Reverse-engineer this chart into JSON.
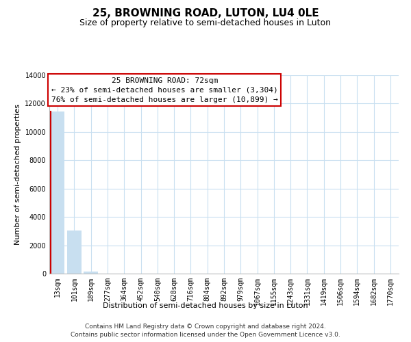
{
  "title": "25, BROWNING ROAD, LUTON, LU4 0LE",
  "subtitle": "Size of property relative to semi-detached houses in Luton",
  "xlabel": "Distribution of semi-detached houses by size in Luton",
  "ylabel": "Number of semi-detached properties",
  "categories": [
    "13sqm",
    "101sqm",
    "189sqm",
    "277sqm",
    "364sqm",
    "452sqm",
    "540sqm",
    "628sqm",
    "716sqm",
    "804sqm",
    "892sqm",
    "979sqm",
    "1067sqm",
    "1155sqm",
    "1243sqm",
    "1331sqm",
    "1419sqm",
    "1506sqm",
    "1594sqm",
    "1682sqm",
    "1770sqm"
  ],
  "values": [
    11450,
    3020,
    130,
    0,
    0,
    0,
    0,
    0,
    0,
    0,
    0,
    0,
    0,
    0,
    0,
    0,
    0,
    0,
    0,
    0,
    0
  ],
  "bar_color": "#c8dff0",
  "highlight_bar_edge_color": "#cc0000",
  "ylim": [
    0,
    14000
  ],
  "yticks": [
    0,
    2000,
    4000,
    6000,
    8000,
    10000,
    12000,
    14000
  ],
  "annotation_box_text_line1": "25 BROWNING ROAD: 72sqm",
  "annotation_box_text_line2": "← 23% of semi-detached houses are smaller (3,304)",
  "annotation_box_text_line3": "76% of semi-detached houses are larger (10,899) →",
  "annotation_box_edge_color": "#cc0000",
  "background_color": "#ffffff",
  "grid_color": "#c8dff0",
  "title_fontsize": 11,
  "subtitle_fontsize": 9,
  "axis_label_fontsize": 8,
  "tick_fontsize": 7,
  "footer_line1": "Contains HM Land Registry data © Crown copyright and database right 2024.",
  "footer_line2": "Contains public sector information licensed under the Open Government Licence v3.0."
}
